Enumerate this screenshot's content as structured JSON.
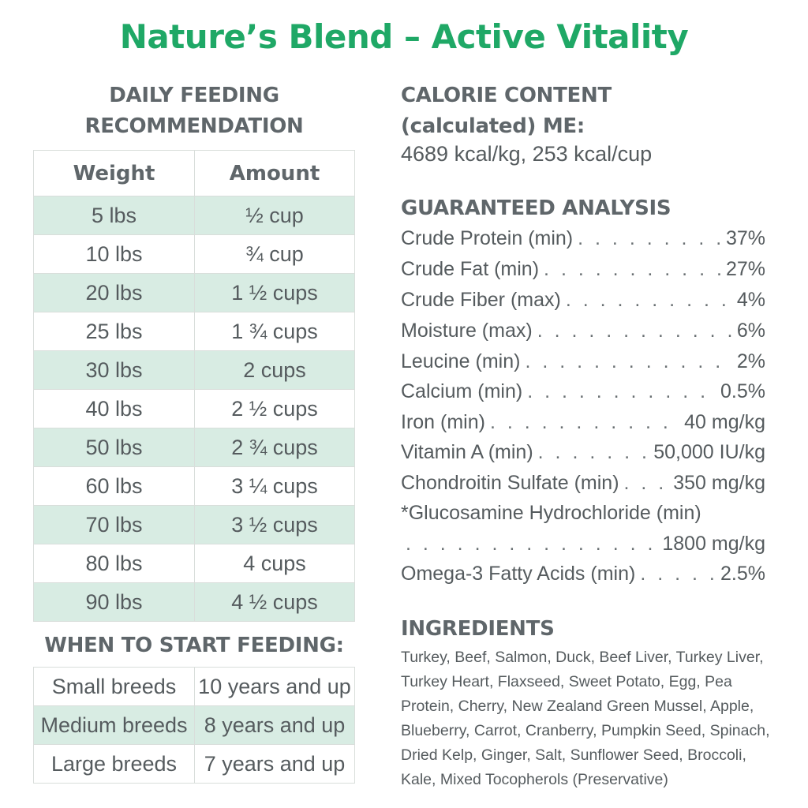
{
  "title": "Nature’s Blend – Active Vitality",
  "feeding": {
    "heading_line1": "DAILY FEEDING",
    "heading_line2": "RECOMMENDATION",
    "col_weight": "Weight",
    "col_amount": "Amount",
    "rows": [
      {
        "weight": "5 lbs",
        "amount": "½ cup"
      },
      {
        "weight": "10 lbs",
        "amount": "¾ cup"
      },
      {
        "weight": "20 lbs",
        "amount": "1 ½ cups"
      },
      {
        "weight": "25 lbs",
        "amount": "1 ¾ cups"
      },
      {
        "weight": "30 lbs",
        "amount": "2 cups"
      },
      {
        "weight": "40 lbs",
        "amount": "2 ½ cups"
      },
      {
        "weight": "50 lbs",
        "amount": "2 ¾ cups"
      },
      {
        "weight": "60 lbs",
        "amount": "3 ¼ cups"
      },
      {
        "weight": "70 lbs",
        "amount": "3 ½ cups"
      },
      {
        "weight": "80 lbs",
        "amount": "4 cups"
      },
      {
        "weight": "90 lbs",
        "amount": "4 ½ cups"
      }
    ]
  },
  "start_feeding": {
    "heading": "WHEN TO START FEEDING:",
    "rows": [
      {
        "breed": "Small breeds",
        "age": "10 years and up"
      },
      {
        "breed": "Medium breeds",
        "age": "8 years and up"
      },
      {
        "breed": "Large breeds",
        "age": "7 years and up"
      }
    ]
  },
  "calorie": {
    "heading_line1": "CALORIE CONTENT",
    "heading_line2": "(calculated) ME:",
    "value": "4689 kcal/kg, 253 kcal/cup"
  },
  "analysis": {
    "heading": "GUARANTEED ANALYSIS",
    "rows": [
      {
        "name": "Crude Protein (min)",
        "value": "37%"
      },
      {
        "name": "Crude Fat (min)",
        "value": "27%"
      },
      {
        "name": "Crude Fiber (max)",
        "value": "4%"
      },
      {
        "name": "Moisture (max)",
        "value": "6%"
      },
      {
        "name": "Leucine (min)",
        "value": "2%"
      },
      {
        "name": "Calcium (min)",
        "value": "0.5%"
      },
      {
        "name": "Iron (min)",
        "value": "40 mg/kg"
      },
      {
        "name": "Vitamin A (min)",
        "value": "50,000 IU/kg"
      },
      {
        "name": "Chondroitin Sulfate (min)",
        "value": "350 mg/kg"
      },
      {
        "name": "*Glucosamine Hydrochloride (min)",
        "value": ""
      },
      {
        "name": "",
        "value": "1800 mg/kg"
      },
      {
        "name": "Omega-3 Fatty Acids (min)",
        "value": "2.5%"
      }
    ]
  },
  "ingredients": {
    "heading": "INGREDIENTS",
    "text": "Turkey, Beef, Salmon, Duck, Beef Liver, Turkey Liver, Turkey Heart, Flaxseed, Sweet Potato, Egg, Pea Protein, Cherry, New Zealand Green Mussel, Apple, Blueberry, Carrot, Cranberry, Pumpkin Seed, Spinach, Dried Kelp, Ginger, Salt, Sunflower Seed, Broccoli, Kale, Mixed Tocopherols (Preservative)"
  }
}
